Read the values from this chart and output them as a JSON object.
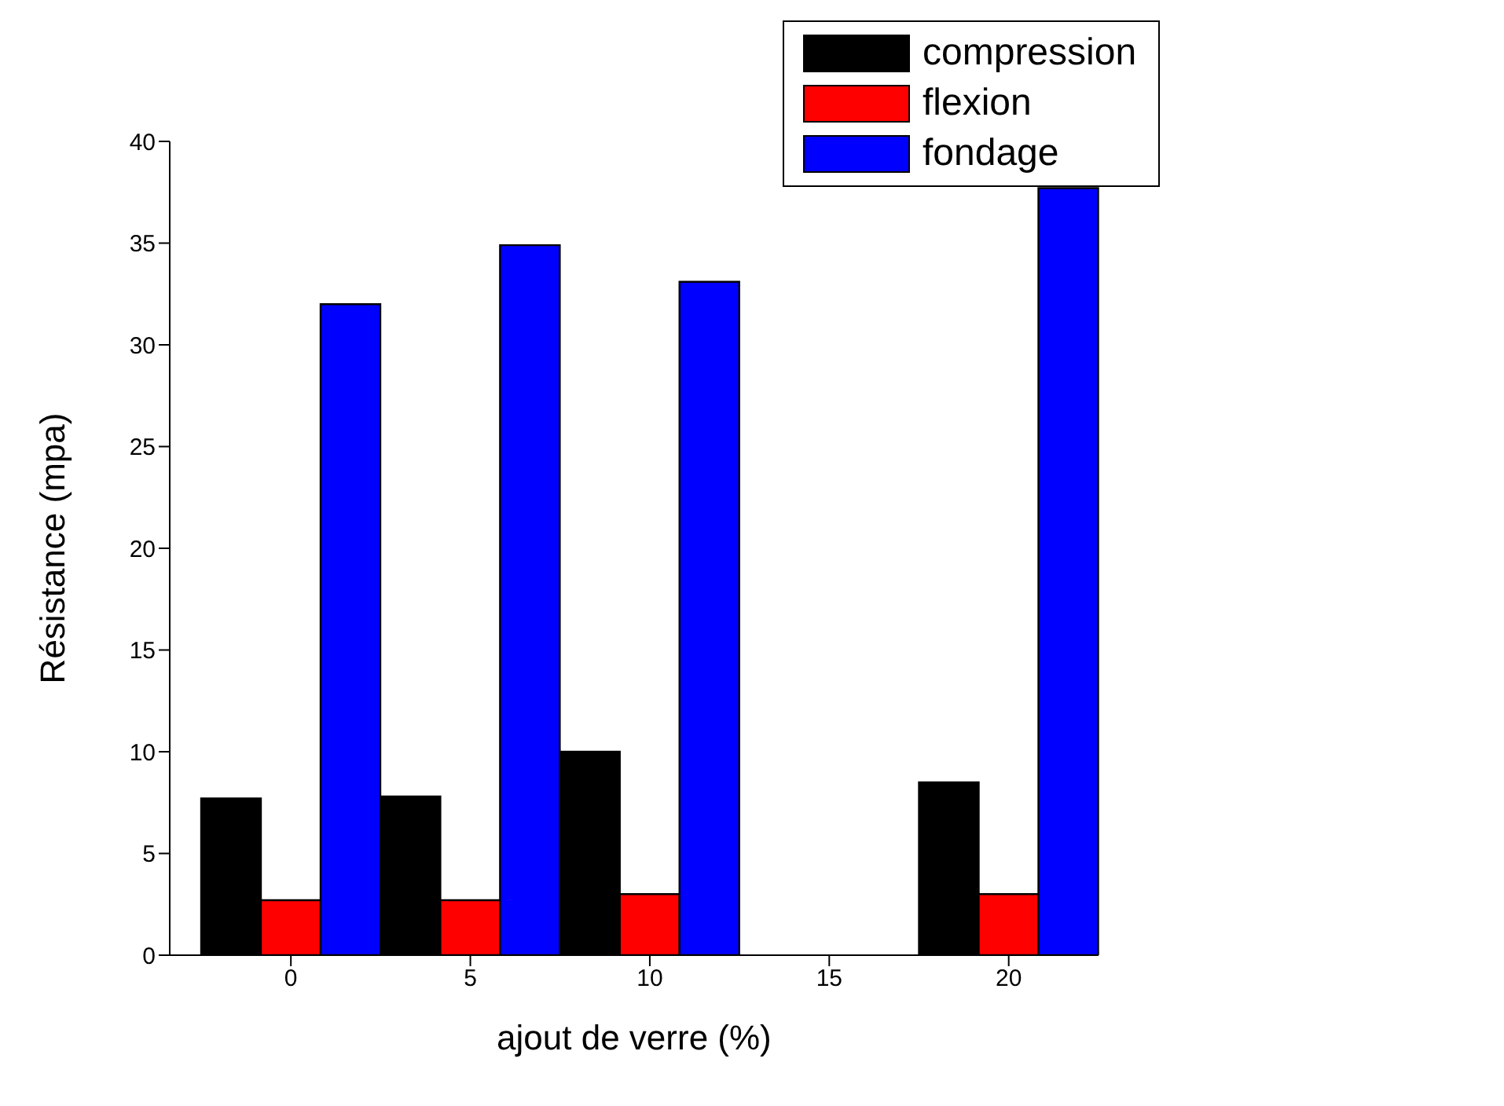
{
  "chart_data": {
    "type": "bar",
    "xlabel": "ajout de verre (%)",
    "ylabel": "Résistance (mpa)",
    "categories": [
      "0",
      "5",
      "10",
      "15",
      "20"
    ],
    "series": [
      {
        "name": "compression",
        "color": "#000000",
        "values": [
          7.7,
          7.8,
          10.0,
          null,
          8.5
        ]
      },
      {
        "name": "flexion",
        "color": "#ff0000",
        "values": [
          2.7,
          2.7,
          3.0,
          null,
          3.0
        ]
      },
      {
        "name": "fondage",
        "color": "#0000ff",
        "values": [
          32.0,
          34.9,
          33.1,
          null,
          37.7
        ]
      }
    ],
    "ylim": [
      0,
      40
    ],
    "yticks": [
      0,
      5,
      10,
      15,
      20,
      25,
      30,
      35,
      40
    ],
    "grid": false,
    "legend": "top right"
  }
}
